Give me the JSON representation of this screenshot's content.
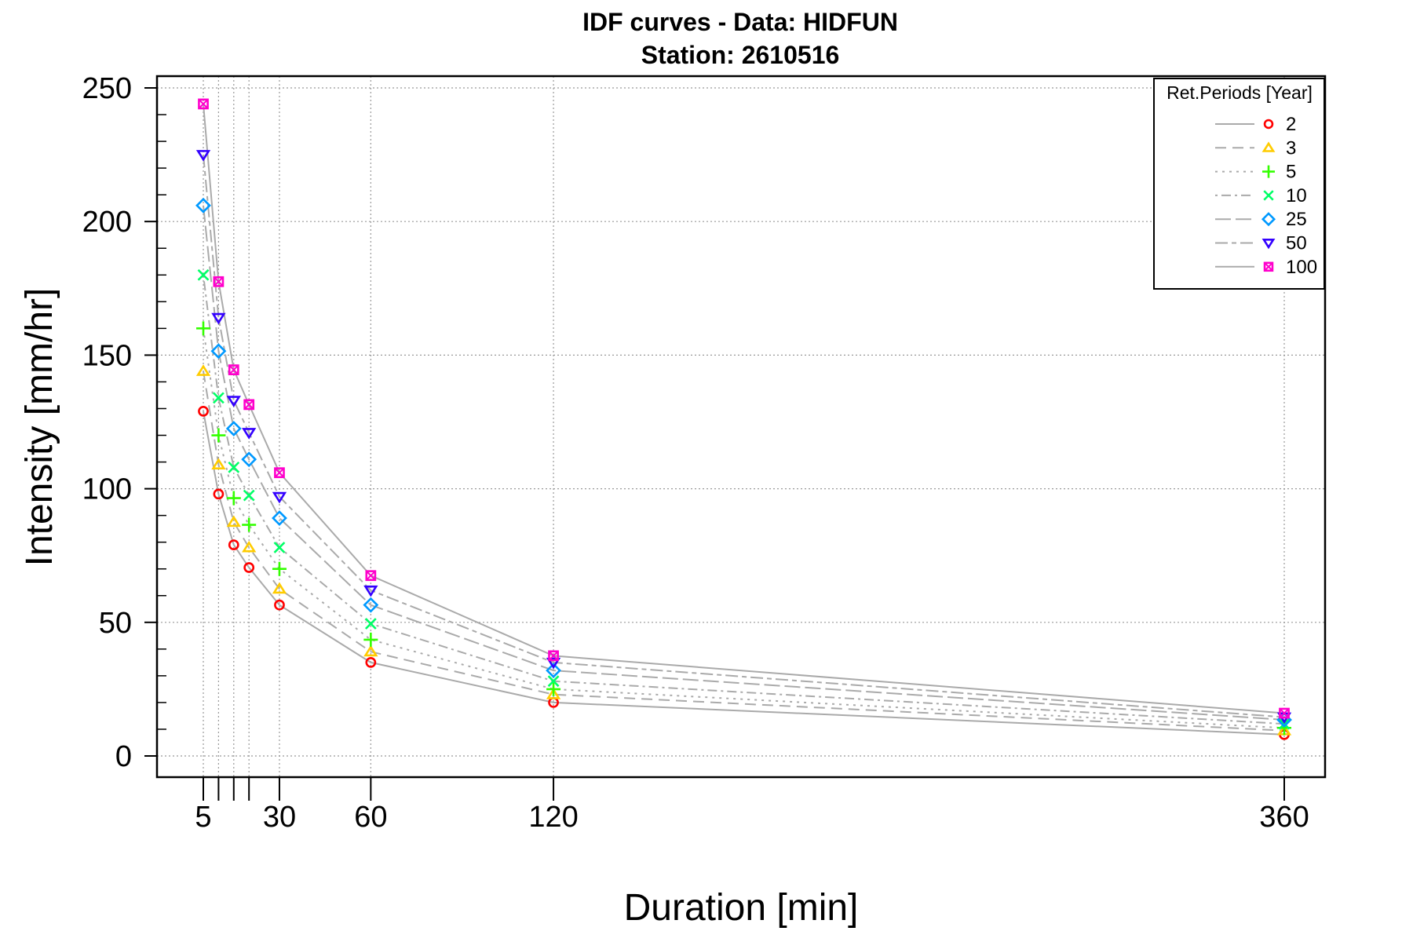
{
  "chart_data": {
    "type": "line",
    "title": "IDF curves - Data: HIDFUN",
    "subtitle": "Station: 2610516",
    "xlabel": "Duration [min]",
    "ylabel": "Intensity [mm/hr]",
    "xlim": [
      0,
      372
    ],
    "ylim": [
      -8,
      254
    ],
    "x_tick_labels": [
      "5",
      "30",
      "60",
      "120",
      "360"
    ],
    "x_tick_values": [
      5,
      10,
      15,
      20,
      30,
      60,
      120,
      360
    ],
    "x_labeled_ticks": [
      5,
      30,
      60,
      120,
      360
    ],
    "y_ticks": [
      0,
      50,
      100,
      150,
      200,
      250
    ],
    "grid": true,
    "legend": {
      "title": "Ret.Periods [Year]",
      "position": "top-right"
    },
    "x": [
      5,
      10,
      15,
      20,
      30,
      60,
      120,
      360
    ],
    "series": [
      {
        "name": "2",
        "color": "#ff0000",
        "marker": "circle",
        "line": "solid",
        "values": [
          129,
          98,
          79,
          70.5,
          56.5,
          35,
          20,
          8
        ]
      },
      {
        "name": "3",
        "color": "#ffcc00",
        "marker": "triangle-up",
        "line": "dashed",
        "values": [
          144,
          109,
          87.5,
          78,
          62.5,
          39,
          23,
          9.5
        ]
      },
      {
        "name": "5",
        "color": "#33ff00",
        "marker": "plus",
        "line": "dotted",
        "values": [
          160,
          120,
          96.5,
          86.5,
          70,
          43.5,
          25,
          10.5
        ]
      },
      {
        "name": "10",
        "color": "#00ff66",
        "marker": "cross",
        "line": "dotdash",
        "values": [
          180,
          134,
          108,
          97.5,
          78,
          49.5,
          28,
          12
        ]
      },
      {
        "name": "25",
        "color": "#0099ff",
        "marker": "diamond",
        "line": "longdash",
        "values": [
          206,
          151.5,
          122.5,
          111,
          89,
          56.5,
          32,
          13.5
        ]
      },
      {
        "name": "50",
        "color": "#3300ff",
        "marker": "triangle-down",
        "line": "twodash",
        "values": [
          225,
          164,
          133,
          121,
          97,
          62,
          35,
          14.5
        ]
      },
      {
        "name": "100",
        "color": "#ff00cc",
        "marker": "square-x",
        "line": "solid",
        "values": [
          244,
          177.5,
          144.5,
          131.5,
          106,
          67.5,
          37.5,
          16
        ]
      }
    ]
  }
}
